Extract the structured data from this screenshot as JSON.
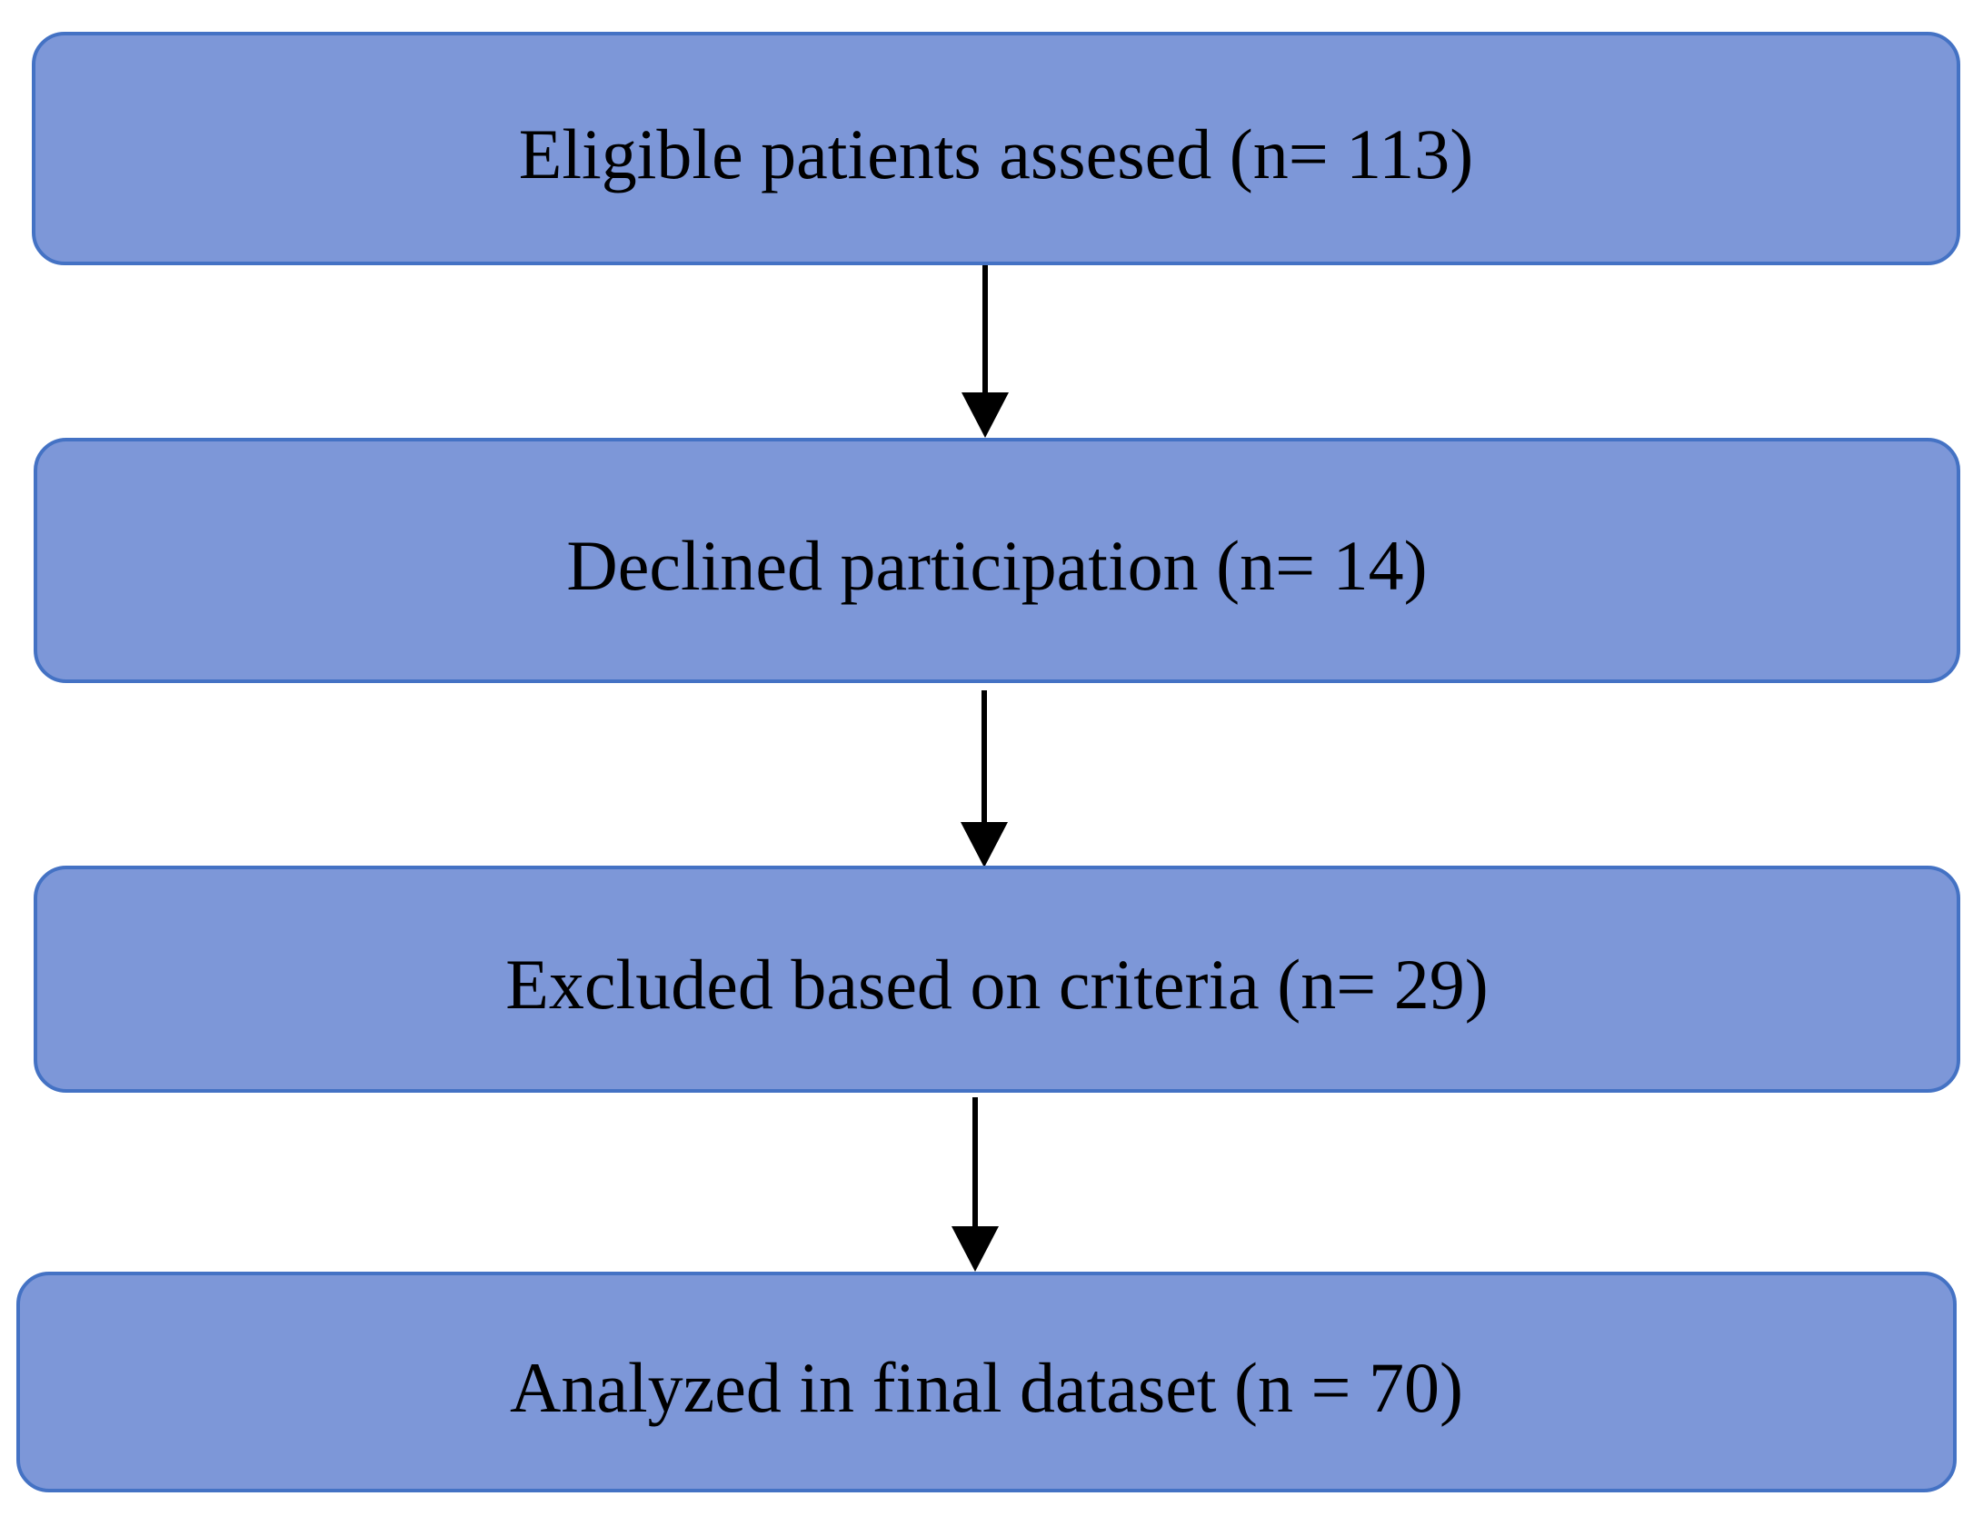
{
  "flowchart": {
    "description": "Patient enrollment flow diagram with four sequential stages connected by downward arrows",
    "boxes": [
      {
        "id": "eligible",
        "label": "Eligible patients assesed (n= 113)"
      },
      {
        "id": "declined",
        "label": "Declined participation (n= 14)"
      },
      {
        "id": "excluded",
        "label": "Excluded based on criteria (n= 29)"
      },
      {
        "id": "analyzed",
        "label": "Analyzed in final dataset (n = 70)"
      }
    ],
    "connections": [
      {
        "from": "eligible",
        "to": "declined",
        "type": "arrow-down"
      },
      {
        "from": "declined",
        "to": "excluded",
        "type": "arrow-down"
      },
      {
        "from": "excluded",
        "to": "analyzed",
        "type": "arrow-down"
      }
    ],
    "colors": {
      "box_fill": "#7D97D8",
      "box_border": "#4472C4",
      "arrow": "#000000",
      "text": "#000000",
      "background": "#FFFFFF"
    }
  }
}
